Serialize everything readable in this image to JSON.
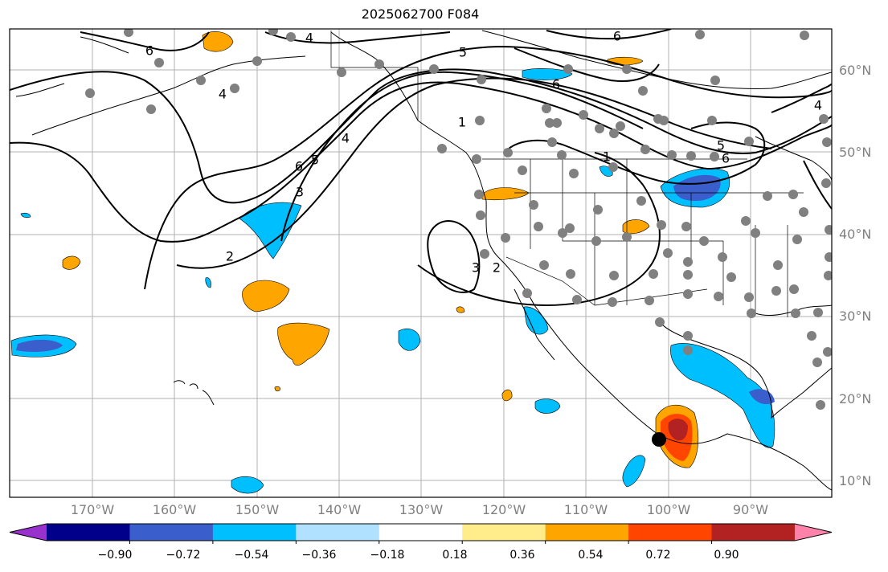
{
  "title": "2025062700 F084",
  "lat_labels": [
    "60°N",
    "50°N",
    "40°N",
    "30°N",
    "20°N",
    "10°N"
  ],
  "lon_labels": [
    "170°W",
    "160°W",
    "150°W",
    "140°W",
    "130°W",
    "120°W",
    "110°W",
    "100°W",
    "90°W"
  ],
  "contour_labels": [
    "6",
    "4",
    "5",
    "6",
    "6",
    "4",
    "6",
    "5",
    "4",
    "3",
    "2",
    "1",
    "1",
    "5",
    "6",
    "3",
    "2",
    "4"
  ],
  "colorbar": {
    "colors": [
      "#9932cc",
      "#00008b",
      "#3a5fcd",
      "#00bfff",
      "#b0e2ff",
      "#ffffff",
      "#ffec8b",
      "#ffa500",
      "#ff4500",
      "#b22222",
      "#ff82ab"
    ],
    "tick_labels": [
      "−0.90",
      "−0.72",
      "−0.54",
      "−0.36",
      "−0.18",
      "0.18",
      "0.36",
      "0.54",
      "0.72",
      "0.90"
    ]
  },
  "marker_color": "#808080"
}
